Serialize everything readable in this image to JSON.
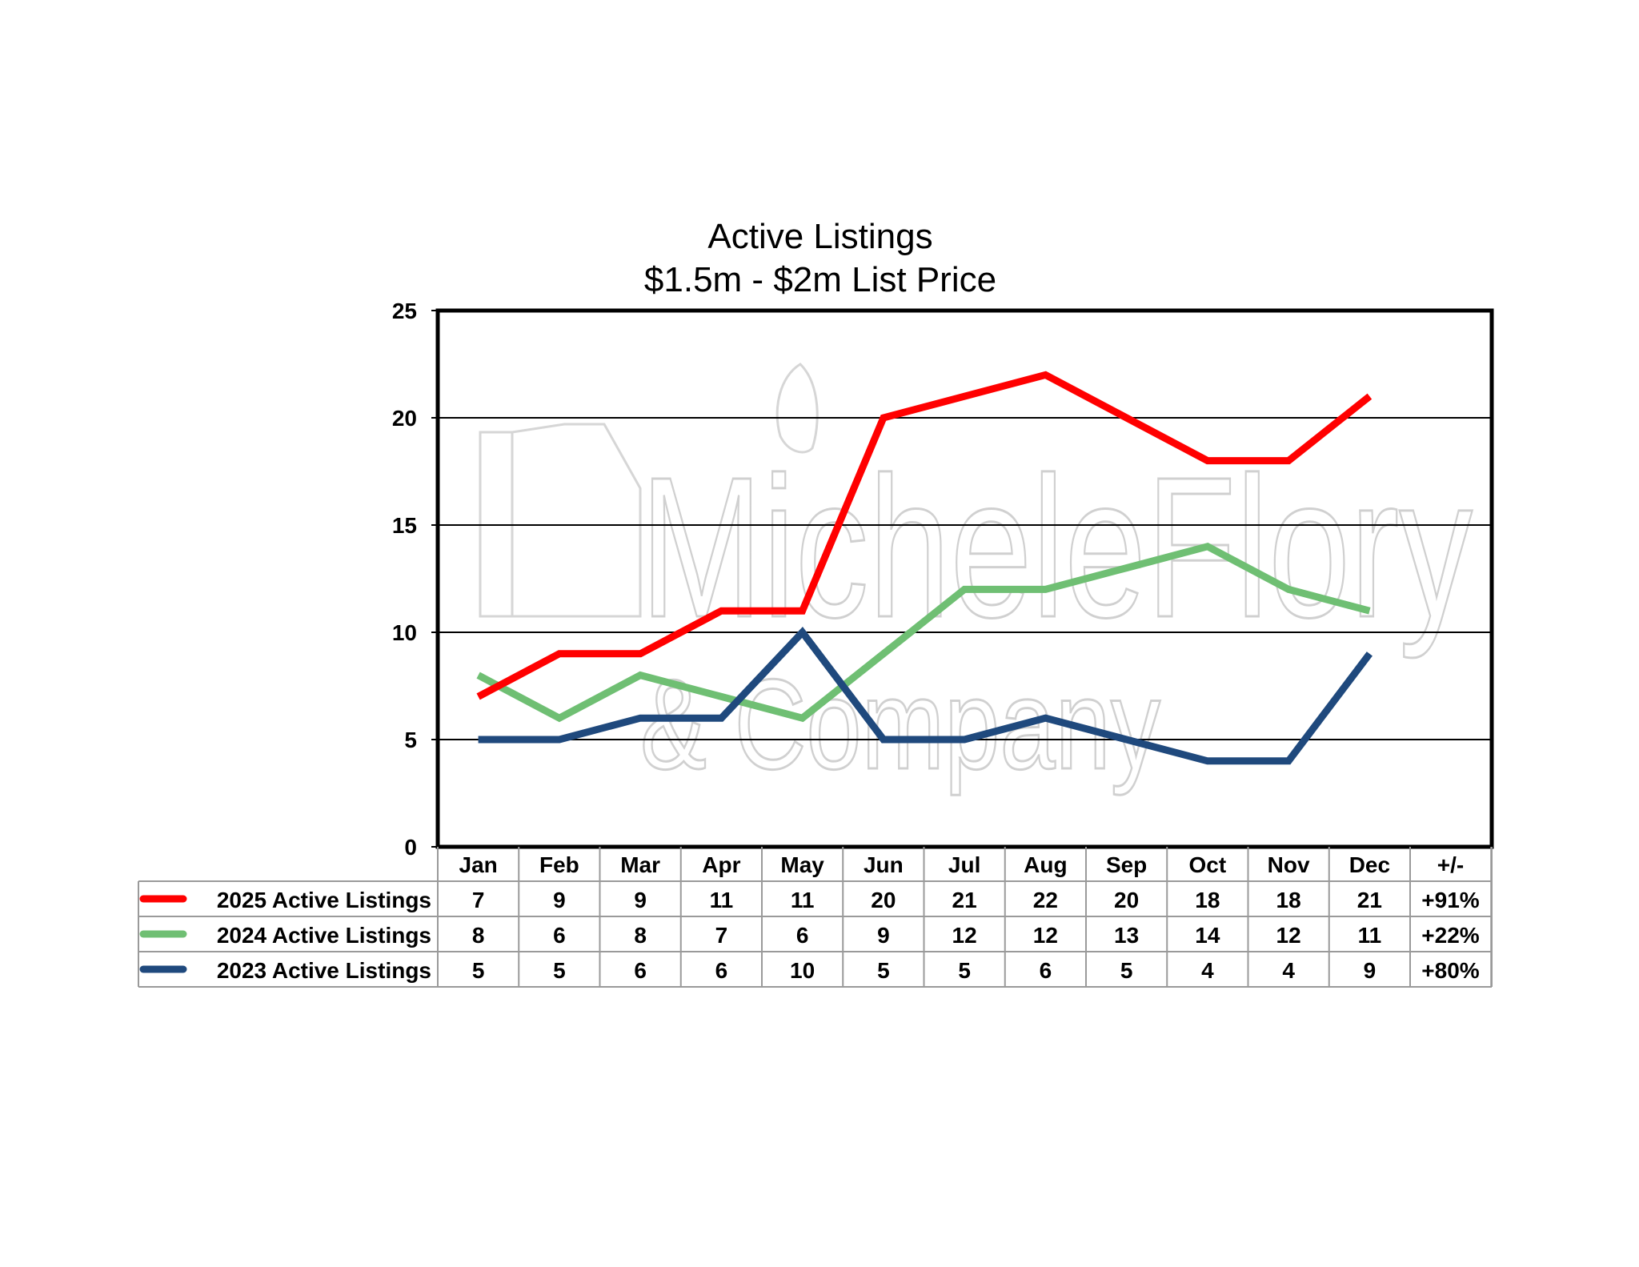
{
  "chart_data": {
    "type": "line",
    "title": "Active Listings",
    "subtitle": "$1.5m - $2m List Price",
    "categories": [
      "Jan",
      "Feb",
      "Mar",
      "Apr",
      "May",
      "Jun",
      "Jul",
      "Aug",
      "Sep",
      "Oct",
      "Nov",
      "Dec"
    ],
    "change_header": "+/-",
    "ylim": [
      0,
      25
    ],
    "yticks": [
      0,
      5,
      10,
      15,
      20,
      25
    ],
    "grid": true,
    "legend": "data table below chart",
    "watermark": {
      "line1": "MicheleFlory",
      "line2": "& Company"
    },
    "series": [
      {
        "name": "2025 Active Listings",
        "color": "#ff0000",
        "values": [
          7,
          9,
          9,
          11,
          11,
          20,
          21,
          22,
          20,
          18,
          18,
          21
        ],
        "change": "+91%"
      },
      {
        "name": "2024 Active Listings",
        "color": "#6fbf73",
        "values": [
          8,
          6,
          8,
          7,
          6,
          9,
          12,
          12,
          13,
          14,
          12,
          11
        ],
        "change": "+22%"
      },
      {
        "name": "2023 Active Listings",
        "color": "#1f497d",
        "values": [
          5,
          5,
          6,
          6,
          10,
          5,
          5,
          6,
          5,
          4,
          4,
          9
        ],
        "change": "+80%"
      }
    ]
  }
}
